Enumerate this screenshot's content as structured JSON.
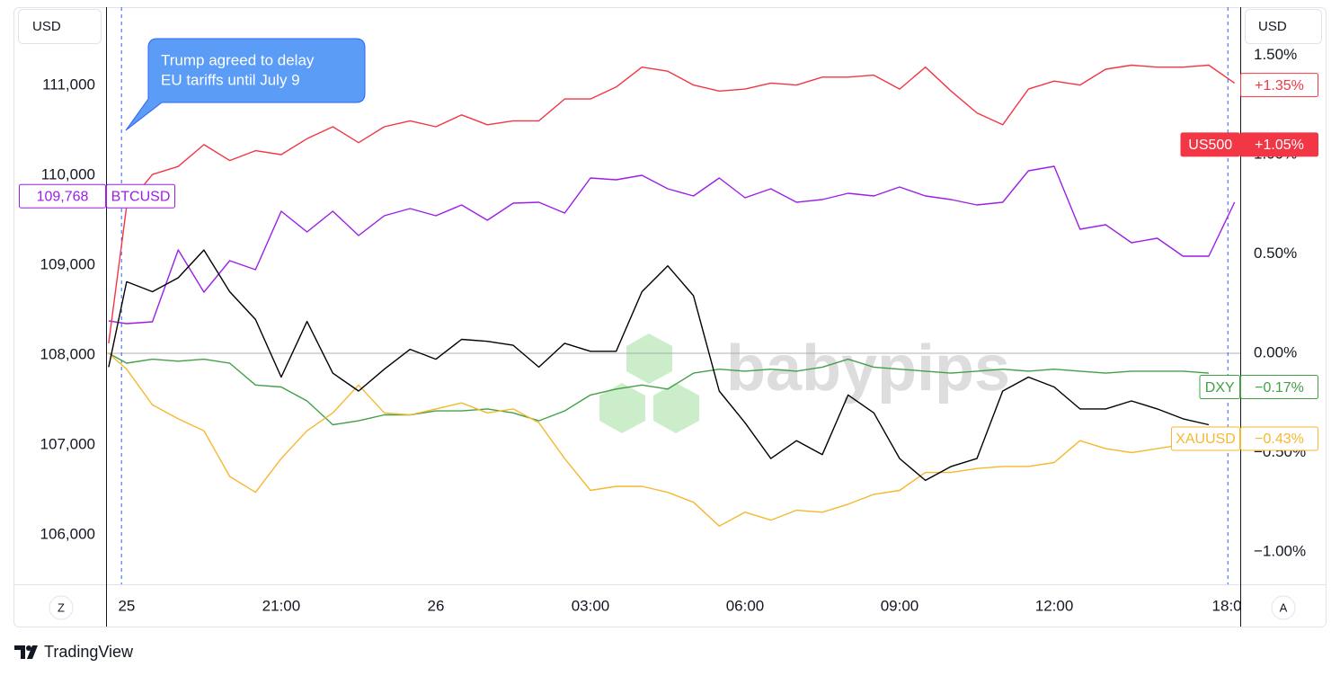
{
  "chart_data": {
    "type": "line",
    "y_unit_label": "USD",
    "y2_unit_label": "USD",
    "buttons": [
      "Z",
      "A"
    ],
    "branding": "TradingView",
    "watermark": "babypips",
    "annotation": [
      "Trump agreed to delay",
      "EU tariffs until July 9"
    ],
    "x": [
      -0.35,
      0,
      0.5,
      1,
      1.5,
      2,
      2.5,
      3,
      3.5,
      4,
      4.5,
      5,
      5.5,
      6,
      6.5,
      7,
      7.5,
      8,
      8.5,
      9,
      9.5,
      10,
      10.5,
      11,
      11.5,
      12,
      12.5,
      13,
      13.5,
      14,
      14.5,
      15,
      15.5,
      16,
      16.5,
      17,
      17.5,
      18,
      18.5,
      19,
      19.5,
      20,
      20.5,
      21,
      21.5
    ],
    "xlim": [
      -0.4,
      21.61
    ],
    "xticks": [
      {
        "value": 0,
        "label": "25"
      },
      {
        "value": 3,
        "label": "21:00"
      },
      {
        "value": 6,
        "label": "26"
      },
      {
        "value": 9,
        "label": "03:00"
      },
      {
        "value": 12,
        "label": "06:00"
      },
      {
        "value": 15,
        "label": "09:00"
      },
      {
        "value": 18,
        "label": "12:00"
      },
      {
        "value": 21.35,
        "label": "18:0"
      }
    ],
    "ylim": [
      105450,
      111870
    ],
    "yticks": [
      {
        "value": 106000,
        "label": "106,000"
      },
      {
        "value": 107000,
        "label": "107,000"
      },
      {
        "value": 108000,
        "label": "108,000"
      },
      {
        "value": 109000,
        "label": "109,000"
      },
      {
        "value": 110000,
        "label": "110,000"
      },
      {
        "value": 111000,
        "label": "111,000"
      }
    ],
    "y2lim": [
      -1.163,
      1.742
    ],
    "y2ticks": [
      {
        "value": -1,
        "label": "−1.00%"
      },
      {
        "value": -0.5,
        "label": "−0.50%"
      },
      {
        "value": 0,
        "label": "0.00%"
      },
      {
        "value": 0.5,
        "label": "0.50%"
      },
      {
        "value": 1,
        "label": "1.00%"
      },
      {
        "value": 1.5,
        "label": "1.50%"
      }
    ],
    "y2_reference_line": 0,
    "session_lines": [
      -0.1,
      21.37
    ],
    "grid": false,
    "series": [
      {
        "name": "BTCUSD",
        "color": "#9c1fe6",
        "values": [
          108380,
          108350,
          108370,
          109170,
          108700,
          109050,
          108950,
          109600,
          109370,
          109600,
          109330,
          109550,
          109630,
          109550,
          109670,
          109500,
          109690,
          109700,
          109580,
          109970,
          109950,
          110000,
          109850,
          109770,
          109970,
          109750,
          109850,
          109700,
          109730,
          109800,
          109770,
          109870,
          109770,
          109730,
          109670,
          109700,
          110050,
          110100,
          109400,
          109450,
          109250,
          109300,
          109100,
          109100,
          109700
        ]
      },
      {
        "name": "US500",
        "color": "#f23645",
        "axis": "y2",
        "values": [
          0.05,
          0.74,
          0.9,
          0.94,
          1.05,
          0.97,
          1.02,
          1.0,
          1.08,
          1.14,
          1.06,
          1.14,
          1.17,
          1.14,
          1.2,
          1.15,
          1.17,
          1.17,
          1.28,
          1.28,
          1.34,
          1.44,
          1.42,
          1.35,
          1.32,
          1.33,
          1.36,
          1.35,
          1.39,
          1.39,
          1.4,
          1.33,
          1.44,
          1.32,
          1.21,
          1.15,
          1.33,
          1.37,
          1.35,
          1.43,
          1.45,
          1.44,
          1.44,
          1.45,
          1.36
        ]
      },
      {
        "name": "DXY",
        "color": "#43a047",
        "axis": "y2",
        "values": [
          0.0,
          -0.05,
          -0.03,
          -0.04,
          -0.03,
          -0.05,
          -0.16,
          -0.17,
          -0.24,
          -0.36,
          -0.34,
          -0.31,
          -0.31,
          -0.29,
          -0.29,
          -0.28,
          -0.3,
          -0.34,
          -0.29,
          -0.21,
          -0.18,
          -0.16,
          -0.18,
          -0.1,
          -0.08,
          -0.09,
          -0.08,
          -0.09,
          -0.07,
          -0.03,
          -0.07,
          -0.08,
          -0.09,
          -0.1,
          -0.09,
          -0.08,
          -0.09,
          -0.08,
          -0.09,
          -0.1,
          -0.09,
          -0.09,
          -0.09,
          -0.1,
          null
        ]
      },
      {
        "name": "XAUUSD",
        "color": "#f5b82e",
        "axis": "y2",
        "values": [
          0.0,
          -0.08,
          -0.26,
          -0.33,
          -0.39,
          -0.62,
          -0.7,
          -0.53,
          -0.39,
          -0.3,
          -0.16,
          -0.3,
          -0.31,
          -0.28,
          -0.25,
          -0.3,
          -0.28,
          -0.35,
          -0.53,
          -0.69,
          -0.67,
          -0.67,
          -0.7,
          -0.75,
          -0.87,
          -0.8,
          -0.84,
          -0.79,
          -0.8,
          -0.76,
          -0.71,
          -0.69,
          -0.6,
          -0.6,
          -0.58,
          -0.57,
          -0.57,
          -0.55,
          -0.44,
          -0.48,
          -0.5,
          -0.48,
          -0.46,
          -0.45,
          null
        ]
      },
      {
        "color": "#000000",
        "axis": "y2",
        "values": [
          -0.07,
          0.36,
          0.31,
          0.38,
          0.52,
          0.31,
          0.17,
          -0.12,
          0.16,
          -0.1,
          -0.19,
          -0.08,
          0.02,
          -0.03,
          0.07,
          0.06,
          0.04,
          -0.07,
          0.05,
          0.01,
          0.01,
          0.31,
          0.44,
          0.29,
          -0.19,
          -0.35,
          -0.53,
          -0.44,
          -0.51,
          -0.21,
          -0.3,
          -0.53,
          -0.64,
          -0.57,
          -0.53,
          -0.19,
          -0.12,
          -0.17,
          -0.28,
          -0.28,
          -0.24,
          -0.28,
          -0.33,
          -0.36,
          null
        ]
      }
    ],
    "price_labels": [
      {
        "series": 1,
        "value": 1.35,
        "label": "+1.35%"
      },
      {
        "series": 1,
        "value": 1.05,
        "label": "+1.05%",
        "show_name": true,
        "filled": true
      },
      {
        "series": 2,
        "value": -0.17,
        "label": "−0.17%",
        "show_name": true
      },
      {
        "series": 3,
        "value": -0.43,
        "label": "−0.43%",
        "show_name": true
      },
      {
        "series": 0,
        "value": 109768,
        "label": "109,768",
        "show_name": true
      }
    ]
  }
}
